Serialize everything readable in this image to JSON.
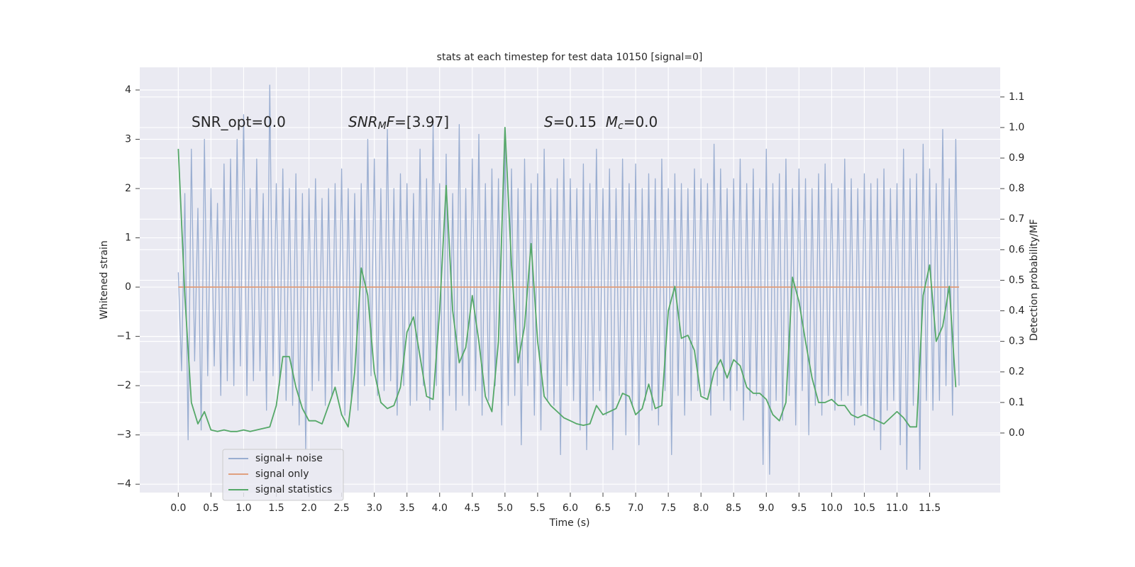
{
  "chart_data": {
    "type": "line",
    "title": "stats at each timestep for test data 10150 [signal=0]",
    "xlabel": "Time (s)",
    "ylabel": "Whitened strain",
    "y2label": "Detection probability/MF",
    "xlim": [
      -0.59,
      12.58
    ],
    "ylim": [
      -4.17,
      4.46
    ],
    "y2lim": [
      -0.195,
      1.197
    ],
    "xticks": [
      {
        "value": 0,
        "label": "0.0"
      },
      {
        "value": 0.5,
        "label": "0.5"
      },
      {
        "value": 1,
        "label": "1.0"
      },
      {
        "value": 1.5,
        "label": "1.5"
      },
      {
        "value": 2,
        "label": "2.0"
      },
      {
        "value": 2.5,
        "label": "2.5"
      },
      {
        "value": 3,
        "label": "3.0"
      },
      {
        "value": 3.5,
        "label": "3.5"
      },
      {
        "value": 4,
        "label": "4.0"
      },
      {
        "value": 4.5,
        "label": "4.5"
      },
      {
        "value": 5,
        "label": "5.0"
      },
      {
        "value": 5.5,
        "label": "5.5"
      },
      {
        "value": 6,
        "label": "6.0"
      },
      {
        "value": 6.5,
        "label": "6.5"
      },
      {
        "value": 7,
        "label": "7.0"
      },
      {
        "value": 7.5,
        "label": "7.5"
      },
      {
        "value": 8,
        "label": "8.0"
      },
      {
        "value": 8.5,
        "label": "8.5"
      },
      {
        "value": 9,
        "label": "9.0"
      },
      {
        "value": 9.5,
        "label": "9.5"
      },
      {
        "value": 10,
        "label": "10.0"
      },
      {
        "value": 10.5,
        "label": "10.5"
      },
      {
        "value": 11,
        "label": "11.0"
      },
      {
        "value": 11.5,
        "label": "11.5"
      }
    ],
    "yticks": [
      {
        "value": -4,
        "label": "−4"
      },
      {
        "value": -3,
        "label": "−3"
      },
      {
        "value": -2,
        "label": "−2"
      },
      {
        "value": -1,
        "label": "−1"
      },
      0,
      1,
      2,
      3,
      4
    ],
    "y2ticks": [
      {
        "value": 0,
        "label": "0.0"
      },
      {
        "value": 0.1,
        "label": "0.1"
      },
      {
        "value": 0.2,
        "label": "0.2"
      },
      {
        "value": 0.3,
        "label": "0.3"
      },
      {
        "value": 0.4,
        "label": "0.4"
      },
      {
        "value": 0.5,
        "label": "0.5"
      },
      {
        "value": 0.6,
        "label": "0.6"
      },
      {
        "value": 0.7,
        "label": "0.7"
      },
      {
        "value": 0.8,
        "label": "0.8"
      },
      {
        "value": 0.9,
        "label": "0.9"
      },
      {
        "value": 1.0,
        "label": "1.0"
      },
      {
        "value": 1.1,
        "label": "1.1"
      }
    ],
    "grid": true,
    "legend": "lower left",
    "annotations": [
      {
        "parts": [
          {
            "text": "SNR_opt=0.0"
          }
        ]
      },
      {
        "parts": [
          {
            "text": "SNR",
            "italic": true
          },
          {
            "text": "M",
            "italic": true,
            "sub": true
          },
          {
            "text": "F",
            "italic": true
          },
          {
            "text": "=[3.97]"
          }
        ]
      },
      {
        "parts": [
          {
            "text": "S",
            "italic": true
          },
          {
            "text": "=0.15  "
          },
          {
            "text": "M",
            "italic": true
          },
          {
            "text": "c",
            "italic": true,
            "sub": true
          },
          {
            "text": "=0.0"
          }
        ]
      }
    ],
    "series": [
      {
        "name": "signal+ noise",
        "color": "#9aaed1",
        "x": [
          0,
          0.05,
          0.1,
          0.15,
          0.2,
          0.25,
          0.3,
          0.35,
          0.4,
          0.45,
          0.5,
          0.55,
          0.6,
          0.65,
          0.7,
          0.75,
          0.8,
          0.85,
          0.9,
          0.95,
          1,
          1.05,
          1.1,
          1.15,
          1.2,
          1.25,
          1.3,
          1.35,
          1.4,
          1.45,
          1.5,
          1.55,
          1.6,
          1.65,
          1.7,
          1.75,
          1.8,
          1.85,
          1.9,
          1.95,
          2,
          2.05,
          2.1,
          2.15,
          2.2,
          2.25,
          2.3,
          2.35,
          2.4,
          2.45,
          2.5,
          2.55,
          2.6,
          2.65,
          2.7,
          2.75,
          2.8,
          2.85,
          2.9,
          2.95,
          3,
          3.05,
          3.1,
          3.15,
          3.2,
          3.25,
          3.3,
          3.35,
          3.4,
          3.45,
          3.5,
          3.55,
          3.6,
          3.65,
          3.7,
          3.75,
          3.8,
          3.85,
          3.9,
          3.95,
          4,
          4.05,
          4.1,
          4.15,
          4.2,
          4.25,
          4.3,
          4.35,
          4.4,
          4.45,
          4.5,
          4.55,
          4.6,
          4.65,
          4.7,
          4.75,
          4.8,
          4.85,
          4.9,
          4.95,
          5,
          5.05,
          5.1,
          5.15,
          5.2,
          5.25,
          5.3,
          5.35,
          5.4,
          5.45,
          5.5,
          5.55,
          5.6,
          5.65,
          5.7,
          5.75,
          5.8,
          5.85,
          5.9,
          5.95,
          6,
          6.05,
          6.1,
          6.15,
          6.2,
          6.25,
          6.3,
          6.35,
          6.4,
          6.45,
          6.5,
          6.55,
          6.6,
          6.65,
          6.7,
          6.75,
          6.8,
          6.85,
          6.9,
          6.95,
          7,
          7.05,
          7.1,
          7.15,
          7.2,
          7.25,
          7.3,
          7.35,
          7.4,
          7.45,
          7.5,
          7.55,
          7.6,
          7.65,
          7.7,
          7.75,
          7.8,
          7.85,
          7.9,
          7.95,
          8,
          8.05,
          8.1,
          8.15,
          8.2,
          8.25,
          8.3,
          8.35,
          8.4,
          8.45,
          8.5,
          8.55,
          8.6,
          8.65,
          8.7,
          8.75,
          8.8,
          8.85,
          8.9,
          8.95,
          9,
          9.05,
          9.1,
          9.15,
          9.2,
          9.25,
          9.3,
          9.35,
          9.4,
          9.45,
          9.5,
          9.55,
          9.6,
          9.65,
          9.7,
          9.75,
          9.8,
          9.85,
          9.9,
          9.95,
          10,
          10.05,
          10.1,
          10.15,
          10.2,
          10.25,
          10.3,
          10.35,
          10.4,
          10.45,
          10.5,
          10.55,
          10.6,
          10.65,
          10.7,
          10.75,
          10.8,
          10.85,
          10.9,
          10.95,
          11,
          11.05,
          11.1,
          11.15,
          11.2,
          11.25,
          11.3,
          11.35,
          11.4,
          11.45,
          11.5,
          11.55,
          11.6,
          11.65,
          11.7,
          11.75,
          11.8,
          11.85,
          11.9,
          11.95
        ],
        "values": [
          0.3,
          -1.7,
          1.9,
          -3.1,
          2.8,
          -1.5,
          1.6,
          -2.9,
          3.0,
          -1.8,
          2.0,
          -1.6,
          1.7,
          -2.2,
          2.5,
          -1.9,
          2.6,
          -2.0,
          3.0,
          -1.6,
          3.5,
          -2.2,
          2.0,
          -1.9,
          2.6,
          -1.7,
          1.9,
          -2.5,
          4.1,
          -1.8,
          2.1,
          -2.0,
          2.4,
          -2.3,
          2.0,
          -2.4,
          2.3,
          -2.8,
          1.9,
          -3.3,
          2.0,
          -2.1,
          2.2,
          -1.9,
          1.8,
          -2.4,
          2.0,
          -2.2,
          2.1,
          -1.7,
          2.4,
          -2.6,
          2.0,
          -2.3,
          1.9,
          -2.5,
          2.1,
          -2.0,
          3.0,
          -1.8,
          2.6,
          -2.2,
          2.0,
          -2.1,
          3.2,
          -1.9,
          2.0,
          -2.6,
          2.3,
          -2.0,
          2.1,
          -2.4,
          1.9,
          -2.3,
          2.8,
          -2.0,
          2.2,
          -2.5,
          3.3,
          -2.0,
          2.1,
          -2.9,
          2.7,
          -2.2,
          1.9,
          -2.5,
          3.3,
          -2.2,
          2.0,
          -2.4,
          2.6,
          -2.1,
          3.1,
          -2.6,
          2.1,
          -2.3,
          2.4,
          -2.0,
          2.2,
          -2.8,
          3.0,
          -2.4,
          2.4,
          -2.2,
          2.0,
          -3.2,
          2.6,
          -2.0,
          2.1,
          -2.6,
          2.3,
          -2.9,
          2.8,
          -2.3,
          2.0,
          -2.4,
          2.2,
          -3.4,
          2.6,
          -2.0,
          2.2,
          -2.3,
          2.0,
          -2.9,
          2.5,
          -3.3,
          2.1,
          -2.3,
          2.8,
          -2.1,
          2.0,
          -2.6,
          2.4,
          -3.3,
          2.0,
          -2.2,
          2.6,
          -3.0,
          2.1,
          -2.4,
          2.5,
          -3.2,
          2.0,
          -2.3,
          2.3,
          -2.5,
          2.2,
          -2.8,
          2.6,
          -2.1,
          2.0,
          -3.4,
          2.3,
          -2.2,
          2.1,
          -2.6,
          2.0,
          -2.3,
          2.4,
          -2.1,
          2.2,
          -2.2,
          2.1,
          -2.6,
          2.9,
          -2.0,
          2.4,
          -2.3,
          2.0,
          -2.5,
          2.2,
          -2.1,
          2.6,
          -2.7,
          2.1,
          -2.3,
          2.4,
          -2.2,
          2.0,
          -3.6,
          2.8,
          -3.8,
          2.1,
          -2.3,
          2.3,
          -2.7,
          2.6,
          -2.2,
          2.0,
          -2.8,
          2.4,
          -2.1,
          2.2,
          -3.0,
          2.0,
          -2.4,
          2.3,
          -2.6,
          2.5,
          -2.2,
          2.1,
          -2.5,
          2.0,
          -2.3,
          2.6,
          -2.2,
          2.2,
          -2.8,
          2.0,
          -2.4,
          2.3,
          -2.6,
          2.1,
          -2.9,
          2.2,
          -3.3,
          2.4,
          -2.5,
          2.0,
          -2.3,
          2.1,
          -3.2,
          2.8,
          -3.7,
          2.2,
          -2.4,
          2.3,
          -3.7,
          2.9,
          -2.3,
          2.4,
          -2.5,
          2.1,
          -2.3,
          3.2,
          -2.0,
          2.2,
          -2.6,
          3.0,
          -2.0
        ]
      },
      {
        "name": "signal only",
        "color": "#e0a07f",
        "x": [
          0,
          11.95
        ],
        "values": [
          0,
          0
        ]
      },
      {
        "name": "signal statistics",
        "color": "#55a868",
        "axis": "y2",
        "x": [
          0,
          0.1,
          0.2,
          0.3,
          0.4,
          0.5,
          0.6,
          0.7,
          0.8,
          0.9,
          1,
          1.1,
          1.2,
          1.3,
          1.4,
          1.5,
          1.6,
          1.7,
          1.8,
          1.9,
          2,
          2.1,
          2.2,
          2.3,
          2.4,
          2.5,
          2.6,
          2.7,
          2.8,
          2.9,
          3,
          3.1,
          3.2,
          3.3,
          3.4,
          3.5,
          3.6,
          3.7,
          3.8,
          3.9,
          4,
          4.1,
          4.2,
          4.3,
          4.4,
          4.5,
          4.6,
          4.7,
          4.8,
          4.9,
          5,
          5.1,
          5.2,
          5.3,
          5.4,
          5.5,
          5.6,
          5.7,
          5.8,
          5.9,
          6,
          6.1,
          6.2,
          6.3,
          6.4,
          6.5,
          6.6,
          6.7,
          6.8,
          6.9,
          7,
          7.1,
          7.2,
          7.3,
          7.4,
          7.5,
          7.6,
          7.7,
          7.8,
          7.9,
          8,
          8.1,
          8.2,
          8.3,
          8.4,
          8.5,
          8.6,
          8.7,
          8.8,
          8.9,
          9,
          9.1,
          9.2,
          9.3,
          9.4,
          9.5,
          9.6,
          9.7,
          9.8,
          9.9,
          10,
          10.1,
          10.2,
          10.3,
          10.4,
          10.5,
          10.6,
          10.7,
          10.8,
          10.9,
          11,
          11.1,
          11.2,
          11.3,
          11.4,
          11.5,
          11.6,
          11.7,
          11.8,
          11.9
        ],
        "values": [
          0.93,
          0.45,
          0.1,
          0.03,
          0.07,
          0.01,
          0.005,
          0.01,
          0.005,
          0.005,
          0.01,
          0.005,
          0.01,
          0.015,
          0.02,
          0.09,
          0.25,
          0.25,
          0.15,
          0.08,
          0.04,
          0.04,
          0.03,
          0.09,
          0.15,
          0.06,
          0.02,
          0.2,
          0.54,
          0.45,
          0.2,
          0.1,
          0.08,
          0.09,
          0.15,
          0.33,
          0.38,
          0.25,
          0.12,
          0.11,
          0.4,
          0.81,
          0.4,
          0.23,
          0.28,
          0.45,
          0.3,
          0.12,
          0.07,
          0.3,
          1.0,
          0.55,
          0.23,
          0.35,
          0.62,
          0.3,
          0.12,
          0.09,
          0.07,
          0.05,
          0.04,
          0.03,
          0.025,
          0.03,
          0.09,
          0.06,
          0.07,
          0.08,
          0.13,
          0.12,
          0.06,
          0.08,
          0.16,
          0.08,
          0.09,
          0.4,
          0.48,
          0.31,
          0.32,
          0.27,
          0.12,
          0.11,
          0.2,
          0.24,
          0.18,
          0.24,
          0.22,
          0.15,
          0.13,
          0.13,
          0.11,
          0.06,
          0.04,
          0.1,
          0.51,
          0.43,
          0.3,
          0.18,
          0.1,
          0.1,
          0.11,
          0.09,
          0.09,
          0.06,
          0.05,
          0.06,
          0.05,
          0.04,
          0.03,
          0.05,
          0.07,
          0.05,
          0.02,
          0.02,
          0.45,
          0.55,
          0.3,
          0.35,
          0.48,
          0.15
        ]
      }
    ]
  }
}
